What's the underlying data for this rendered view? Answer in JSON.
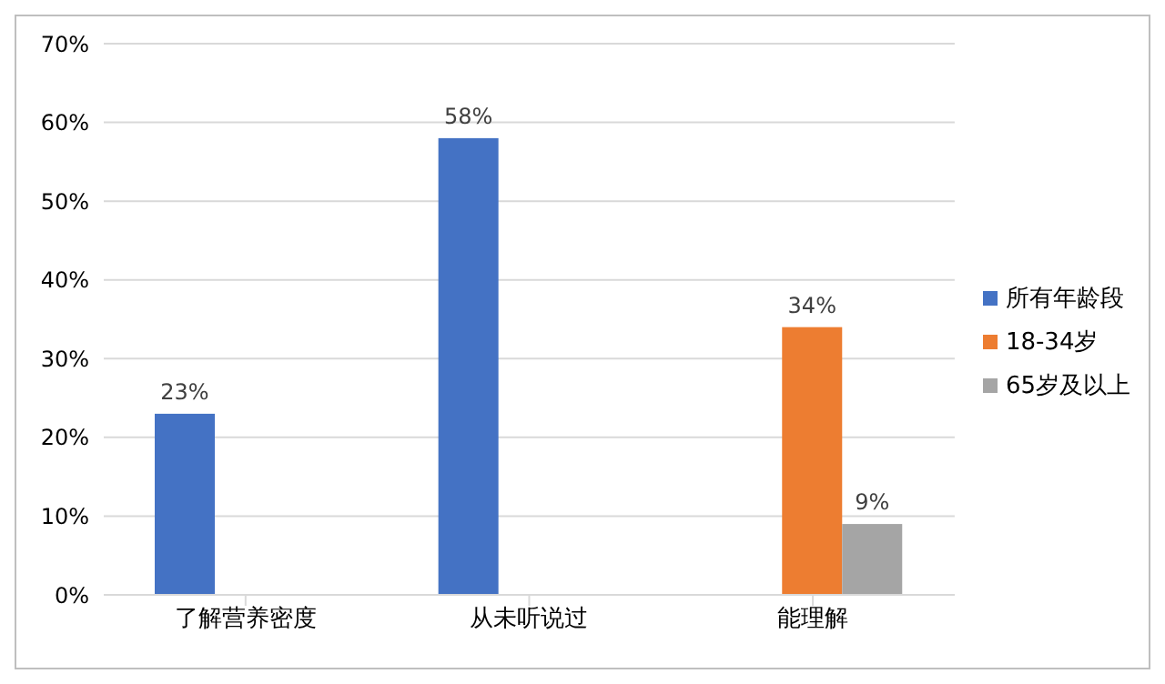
{
  "chart_data": {
    "type": "bar",
    "categories": [
      "了解营养密度",
      "从未听说过",
      "能理解"
    ],
    "series": [
      {
        "name": "所有年龄段",
        "color": "#4472c4",
        "values": [
          23,
          58,
          null
        ],
        "value_labels": [
          "23%",
          "58%",
          null
        ]
      },
      {
        "name": "18-34岁",
        "color": "#ed7d31",
        "values": [
          null,
          null,
          34
        ],
        "value_labels": [
          null,
          null,
          "34%"
        ]
      },
      {
        "name": "65岁及以上",
        "color": "#a5a5a5",
        "values": [
          null,
          null,
          9
        ],
        "value_labels": [
          null,
          null,
          "9%"
        ]
      }
    ],
    "ylim": [
      0,
      70
    ],
    "yticks": [
      {
        "value": 0,
        "label": "0%"
      },
      {
        "value": 10,
        "label": "10%"
      },
      {
        "value": 20,
        "label": "20%"
      },
      {
        "value": 30,
        "label": "30%"
      },
      {
        "value": 40,
        "label": "40%"
      },
      {
        "value": 50,
        "label": "50%"
      },
      {
        "value": 60,
        "label": "60%"
      },
      {
        "value": 70,
        "label": "70%"
      }
    ],
    "grid": "y",
    "legend": "right"
  }
}
